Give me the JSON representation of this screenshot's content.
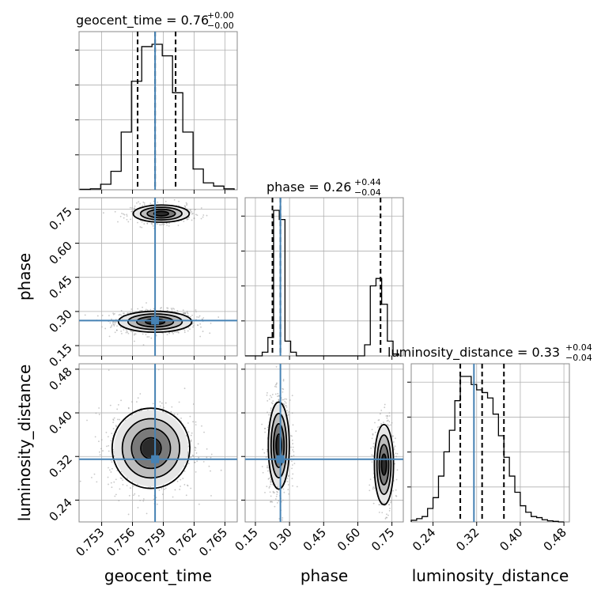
{
  "chart_data": {
    "type": "corner",
    "parameters": [
      "geocent_time",
      "phase",
      "luminosity_distance"
    ],
    "truths": {
      "geocent_time": 0.7582,
      "phase": 0.26,
      "luminosity_distance": 0.315
    },
    "titles": [
      {
        "param": "geocent_time",
        "text": "geocent_time = 0.76",
        "sup": "+0.00",
        "sub": "−0.00"
      },
      {
        "param": "phase",
        "text": "phase = 0.26",
        "sup": "+0.44",
        "sub": "−0.04"
      },
      {
        "param": "luminosity_distance",
        "text": "luminosity_distance = 0.33",
        "sup": "+0.04",
        "sub": "−0.04"
      }
    ],
    "axes": {
      "geocent_time": {
        "range": [
          0.7508,
          0.7662
        ],
        "ticks": [
          0.753,
          0.756,
          0.759,
          0.762,
          0.765
        ],
        "tick_labels": [
          "0.753",
          "0.756",
          "0.759",
          "0.762",
          "0.765"
        ]
      },
      "phase": {
        "range": [
          0.105,
          0.8
        ],
        "ticks": [
          0.15,
          0.3,
          0.45,
          0.6,
          0.75
        ],
        "tick_labels": [
          "0.15",
          "0.30",
          "0.45",
          "0.60",
          "0.75"
        ]
      },
      "luminosity_distance": {
        "range": [
          0.2,
          0.49
        ],
        "ticks": [
          0.24,
          0.32,
          0.4,
          0.48
        ],
        "tick_labels": [
          "0.24",
          "0.32",
          "0.40",
          "0.48"
        ]
      }
    },
    "histograms": {
      "geocent_time": {
        "bins": [
          0.7509,
          0.7519,
          0.7529,
          0.7539,
          0.7549,
          0.7559,
          0.7569,
          0.7579,
          0.7589,
          0.7599,
          0.7609,
          0.7619,
          0.7629,
          0.7639,
          0.7649,
          0.7659
        ],
        "counts": [
          1,
          2,
          12,
          40,
          125,
          235,
          310,
          315,
          290,
          210,
          125,
          45,
          15,
          8,
          2
        ],
        "quantiles": [
          0.7565,
          0.7582,
          0.7602
        ]
      },
      "phase": {
        "bins": [
          0.105,
          0.13,
          0.155,
          0.18,
          0.205,
          0.23,
          0.255,
          0.28,
          0.305,
          0.33,
          0.355,
          0.38,
          0.405,
          0.43,
          0.455,
          0.48,
          0.505,
          0.53,
          0.555,
          0.58,
          0.605,
          0.63,
          0.655,
          0.68,
          0.705,
          0.73,
          0.755,
          0.78
        ],
        "counts": [
          0,
          0,
          0,
          10,
          50,
          395,
          370,
          40,
          10,
          0,
          0,
          0,
          0,
          0,
          0,
          0,
          0,
          0,
          0,
          0,
          0,
          30,
          190,
          210,
          140,
          40,
          5
        ],
        "quantiles": [
          0.225,
          0.26,
          0.7
        ]
      },
      "luminosity_distance": {
        "bins": [
          0.2,
          0.21,
          0.22,
          0.23,
          0.24,
          0.25,
          0.26,
          0.27,
          0.28,
          0.29,
          0.3,
          0.31,
          0.32,
          0.33,
          0.34,
          0.35,
          0.36,
          0.37,
          0.38,
          0.39,
          0.4,
          0.41,
          0.42,
          0.43,
          0.44,
          0.45,
          0.46,
          0.47,
          0.48
        ],
        "counts": [
          3,
          6,
          10,
          25,
          45,
          85,
          130,
          170,
          225,
          270,
          270,
          255,
          245,
          240,
          230,
          200,
          160,
          120,
          85,
          55,
          30,
          18,
          10,
          8,
          4,
          2,
          1,
          0
        ],
        "quantiles": [
          0.29,
          0.33,
          0.37
        ]
      }
    },
    "joint_modes": [
      {
        "x": "geocent_time",
        "y": "phase",
        "peaks": [
          {
            "cx": 0.7582,
            "cy": 0.255,
            "sx": 0.0017,
            "sy": 0.022
          },
          {
            "cx": 0.7588,
            "cy": 0.73,
            "sx": 0.0013,
            "sy": 0.018
          }
        ]
      },
      {
        "x": "geocent_time",
        "y": "luminosity_distance",
        "peaks": [
          {
            "cx": 0.7578,
            "cy": 0.335,
            "sx": 0.0018,
            "sy": 0.035
          }
        ]
      },
      {
        "x": "phase",
        "y": "luminosity_distance",
        "peaks": [
          {
            "cx": 0.253,
            "cy": 0.34,
            "sx": 0.022,
            "sy": 0.038
          },
          {
            "cx": 0.715,
            "cy": 0.305,
            "sx": 0.02,
            "sy": 0.035
          }
        ]
      }
    ],
    "colors": {
      "truth": "#4682b4",
      "hist": "#000000",
      "grid": "#b0b0b0"
    },
    "grid": true
  }
}
